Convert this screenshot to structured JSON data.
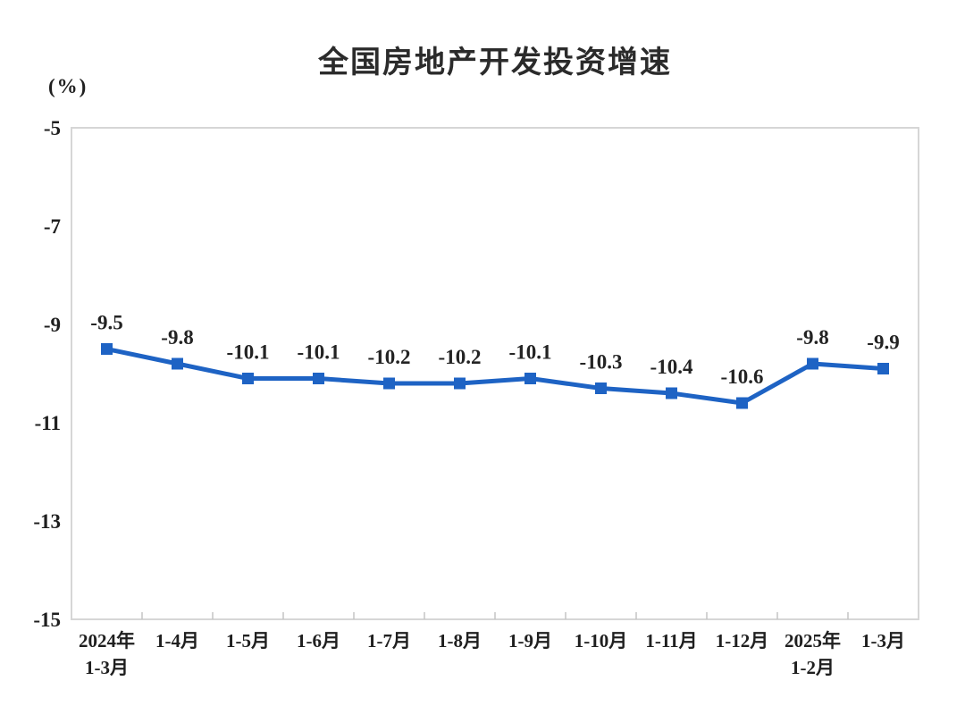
{
  "chart_data": {
    "type": "line",
    "title": "全国房地产开发投资增速",
    "ylabel": "(%)",
    "categories": [
      "2024年\n1-3月",
      "1-4月",
      "1-5月",
      "1-6月",
      "1-7月",
      "1-8月",
      "1-9月",
      "1-10月",
      "1-11月",
      "1-12月",
      "2025年\n1-2月",
      "1-3月"
    ],
    "values": [
      -9.5,
      -9.8,
      -10.1,
      -10.1,
      -10.2,
      -10.2,
      -10.1,
      -10.3,
      -10.4,
      -10.6,
      -9.8,
      -9.9
    ],
    "data_labels": [
      "-9.5",
      "-9.8",
      "-10.1",
      "-10.1",
      "-10.2",
      "-10.2",
      "-10.1",
      "-10.3",
      "-10.4",
      "-10.6",
      "-9.8",
      "-9.9"
    ],
    "ylim": [
      -15,
      -5
    ],
    "yticks": [
      -5,
      -7,
      -9,
      -11,
      -13,
      -15
    ],
    "grid": false,
    "legend_position": "none",
    "marker": "square",
    "colors": {
      "line": "#1e63c4",
      "marker": "#1e63c4",
      "frame": "#d6d6d6",
      "tick_mark": "#c4c4c4",
      "text": "#1f1f1f",
      "title_text": "#2b2b2b",
      "background": "#ffffff"
    }
  }
}
